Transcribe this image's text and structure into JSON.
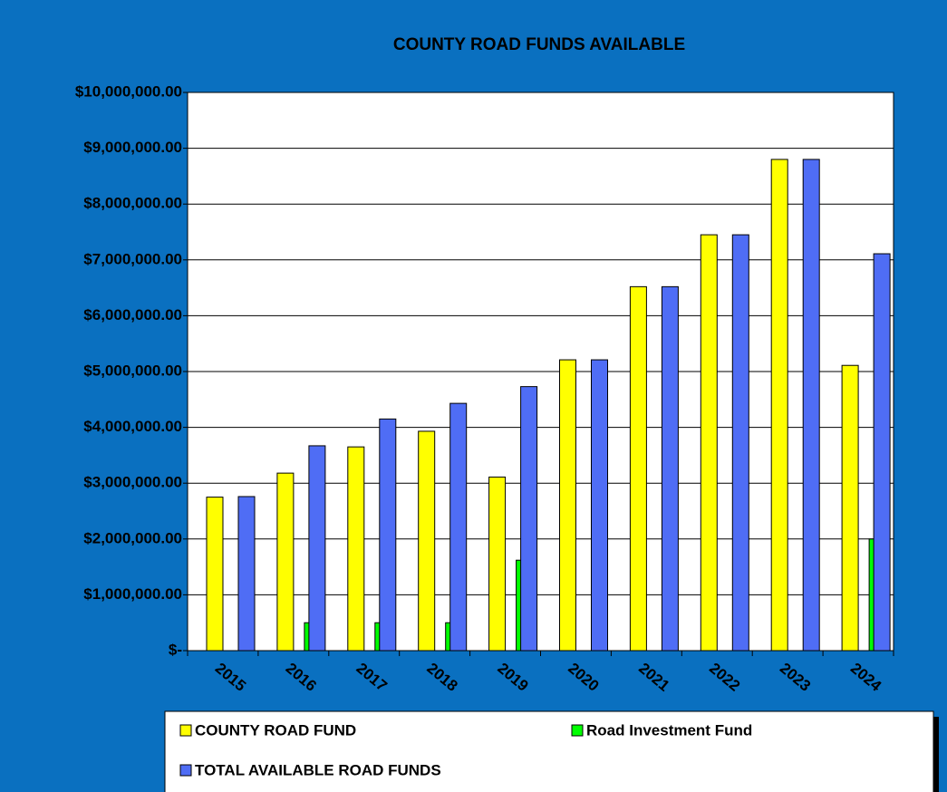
{
  "chart_data": {
    "type": "bar",
    "title": "COUNTY ROAD FUNDS AVAILABLE",
    "categories": [
      "2015",
      "2016",
      "2017",
      "2018",
      "2019",
      "2020",
      "2021",
      "2022",
      "2023",
      "2024"
    ],
    "series": [
      {
        "name": "COUNTY ROAD FUND",
        "color": "#ffff00",
        "values": [
          2750000,
          3180000,
          3650000,
          3930000,
          3110000,
          5210000,
          6520000,
          7450000,
          8800000,
          5110000
        ]
      },
      {
        "name": "Road Investment Fund",
        "color": "#00ff00",
        "values": [
          null,
          500000,
          500000,
          500000,
          1620000,
          null,
          null,
          null,
          null,
          2000000
        ]
      },
      {
        "name": "TOTAL AVAILABLE ROAD FUNDS",
        "color": "#4f6df5",
        "values": [
          2760000,
          3670000,
          4150000,
          4430000,
          4730000,
          5210000,
          6520000,
          7450000,
          8800000,
          7110000
        ]
      }
    ],
    "ylim": [
      0,
      10000000
    ],
    "yticks": [
      {
        "value": 0,
        "label": "$-"
      },
      {
        "value": 1000000,
        "label": "$1,000,000.00"
      },
      {
        "value": 2000000,
        "label": "$2,000,000.00"
      },
      {
        "value": 3000000,
        "label": "$3,000,000.00"
      },
      {
        "value": 4000000,
        "label": "$4,000,000.00"
      },
      {
        "value": 5000000,
        "label": "$5,000,000.00"
      },
      {
        "value": 6000000,
        "label": "$6,000,000.00"
      },
      {
        "value": 7000000,
        "label": "$7,000,000.00"
      },
      {
        "value": 8000000,
        "label": "$8,000,000.00"
      },
      {
        "value": 9000000,
        "label": "$9,000,000.00"
      },
      {
        "value": 10000000,
        "label": "$10,000,000.00"
      }
    ],
    "grid": true
  }
}
